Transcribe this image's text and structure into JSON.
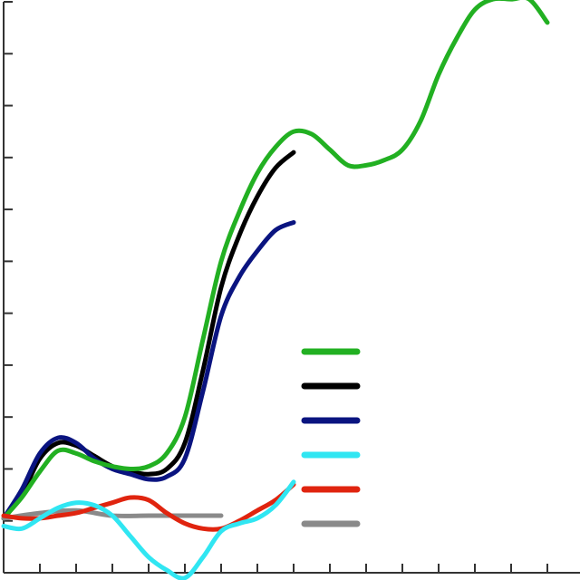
{
  "chart_data": {
    "type": "line",
    "title": "",
    "xlabel": "",
    "ylabel": "",
    "grid": false,
    "xlim": [
      0,
      16
    ],
    "ylim": [
      0,
      11
    ],
    "x_ticks": 16,
    "y_ticks": 11,
    "legend_position": "lower-right",
    "series": [
      {
        "color": "#22b022",
        "points": [
          [
            0,
            1.05
          ],
          [
            0.5,
            1.45
          ],
          [
            1,
            1.95
          ],
          [
            1.5,
            2.35
          ],
          [
            2,
            2.3
          ],
          [
            2.5,
            2.15
          ],
          [
            3,
            2.05
          ],
          [
            3.5,
            2.0
          ],
          [
            4,
            2.05
          ],
          [
            4.5,
            2.3
          ],
          [
            5,
            3.0
          ],
          [
            5.5,
            4.5
          ],
          [
            6,
            6.0
          ],
          [
            6.5,
            6.95
          ],
          [
            7,
            7.7
          ],
          [
            7.5,
            8.2
          ],
          [
            8,
            8.5
          ],
          [
            8.5,
            8.45
          ],
          [
            9,
            8.15
          ],
          [
            9.5,
            7.85
          ],
          [
            10,
            7.85
          ],
          [
            10.5,
            7.95
          ],
          [
            11,
            8.15
          ],
          [
            11.5,
            8.7
          ],
          [
            12,
            9.6
          ],
          [
            12.5,
            10.3
          ],
          [
            13,
            10.85
          ],
          [
            13.5,
            11.05
          ],
          [
            14,
            11.05
          ],
          [
            14.5,
            11.05
          ],
          [
            15,
            10.6
          ]
        ]
      },
      {
        "color": "#000000",
        "points": [
          [
            0,
            1.05
          ],
          [
            0.5,
            1.5
          ],
          [
            1,
            2.2
          ],
          [
            1.5,
            2.5
          ],
          [
            2,
            2.45
          ],
          [
            2.5,
            2.25
          ],
          [
            3,
            2.05
          ],
          [
            3.5,
            1.95
          ],
          [
            4,
            1.9
          ],
          [
            4.5,
            2.0
          ],
          [
            5,
            2.5
          ],
          [
            5.5,
            3.9
          ],
          [
            6,
            5.5
          ],
          [
            6.5,
            6.5
          ],
          [
            7,
            7.25
          ],
          [
            7.5,
            7.8
          ],
          [
            8,
            8.1
          ]
        ]
      },
      {
        "color": "#0a1480",
        "points": [
          [
            0,
            1.05
          ],
          [
            0.5,
            1.6
          ],
          [
            1,
            2.3
          ],
          [
            1.5,
            2.6
          ],
          [
            2,
            2.5
          ],
          [
            2.5,
            2.2
          ],
          [
            3,
            2.0
          ],
          [
            3.5,
            1.9
          ],
          [
            4,
            1.8
          ],
          [
            4.5,
            1.85
          ],
          [
            5,
            2.2
          ],
          [
            5.5,
            3.5
          ],
          [
            6,
            4.95
          ],
          [
            6.5,
            5.7
          ],
          [
            7,
            6.2
          ],
          [
            7.5,
            6.6
          ],
          [
            8,
            6.75
          ]
        ]
      },
      {
        "color": "#30e6f2",
        "points": [
          [
            0,
            0.9
          ],
          [
            0.5,
            0.85
          ],
          [
            1,
            1.05
          ],
          [
            1.5,
            1.25
          ],
          [
            2,
            1.35
          ],
          [
            2.5,
            1.3
          ],
          [
            3,
            1.1
          ],
          [
            3.5,
            0.7
          ],
          [
            4,
            0.3
          ],
          [
            4.5,
            0.05
          ],
          [
            5,
            -0.1
          ],
          [
            5.5,
            0.3
          ],
          [
            6,
            0.8
          ],
          [
            6.5,
            0.95
          ],
          [
            7,
            1.05
          ],
          [
            7.5,
            1.3
          ],
          [
            8,
            1.75
          ]
        ]
      },
      {
        "color": "#e0240f",
        "points": [
          [
            0,
            1.1
          ],
          [
            0.5,
            1.05
          ],
          [
            1,
            1.05
          ],
          [
            1.5,
            1.1
          ],
          [
            2,
            1.15
          ],
          [
            2.5,
            1.25
          ],
          [
            3,
            1.35
          ],
          [
            3.5,
            1.45
          ],
          [
            4,
            1.4
          ],
          [
            4.5,
            1.15
          ],
          [
            5,
            0.95
          ],
          [
            5.5,
            0.85
          ],
          [
            6,
            0.85
          ],
          [
            6.5,
            1.0
          ],
          [
            7,
            1.2
          ],
          [
            7.5,
            1.4
          ],
          [
            8,
            1.7
          ]
        ]
      },
      {
        "color": "#8a8a8a",
        "points": [
          [
            0,
            1.05
          ],
          [
            1,
            1.15
          ],
          [
            2,
            1.2
          ],
          [
            3,
            1.1
          ],
          [
            4,
            1.1
          ],
          [
            5,
            1.1
          ],
          [
            6,
            1.1
          ]
        ]
      }
    ]
  }
}
